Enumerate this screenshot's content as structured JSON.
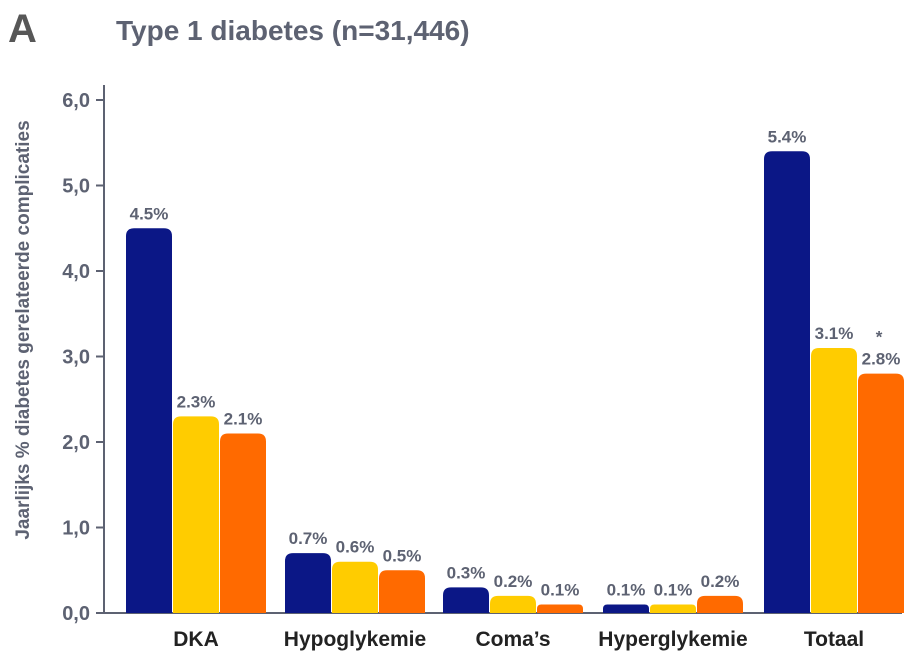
{
  "panel_label": "A",
  "colors": {
    "text": "#5d6272",
    "axis": "#5d6272",
    "category_text": "#222222"
  },
  "chart_data": {
    "type": "bar",
    "title": "Type 1 diabetes (n=31,446)",
    "xlabel": "",
    "ylabel": "Jaarlijks % diabetes gerelateerde complicaties",
    "ylim": [
      0,
      6
    ],
    "yticks": [
      0,
      1,
      2,
      3,
      4,
      5,
      6
    ],
    "ytick_labels": [
      "0,0",
      "1,0",
      "2,0",
      "3,0",
      "4,0",
      "5,0",
      "6,0"
    ],
    "grid": false,
    "legend": "none",
    "categories": [
      "DKA",
      "Hypoglykemie",
      "Coma’s",
      "Hyperglykemie",
      "Totaal"
    ],
    "series": [
      {
        "name": "series-1",
        "color": "#0b1786",
        "values": [
          4.5,
          0.7,
          0.3,
          0.1,
          5.4
        ],
        "labels": [
          "4.5%",
          "0.7%",
          "0.3%",
          "0.1%",
          "5.4%"
        ]
      },
      {
        "name": "series-2",
        "color": "#ffcc00",
        "values": [
          2.3,
          0.6,
          0.2,
          0.1,
          3.1
        ],
        "labels": [
          "2.3%",
          "0.6%",
          "0.2%",
          "0.1%",
          "3.1%"
        ]
      },
      {
        "name": "series-3",
        "color": "#ff6a00",
        "values": [
          2.1,
          0.5,
          0.1,
          0.2,
          2.8
        ],
        "labels": [
          "2.1%",
          "0.5%",
          "0.1%",
          "0.2%",
          "2.8%"
        ]
      }
    ],
    "annotations": [
      {
        "category": "Totaal",
        "series": 2,
        "text": "*"
      }
    ]
  }
}
